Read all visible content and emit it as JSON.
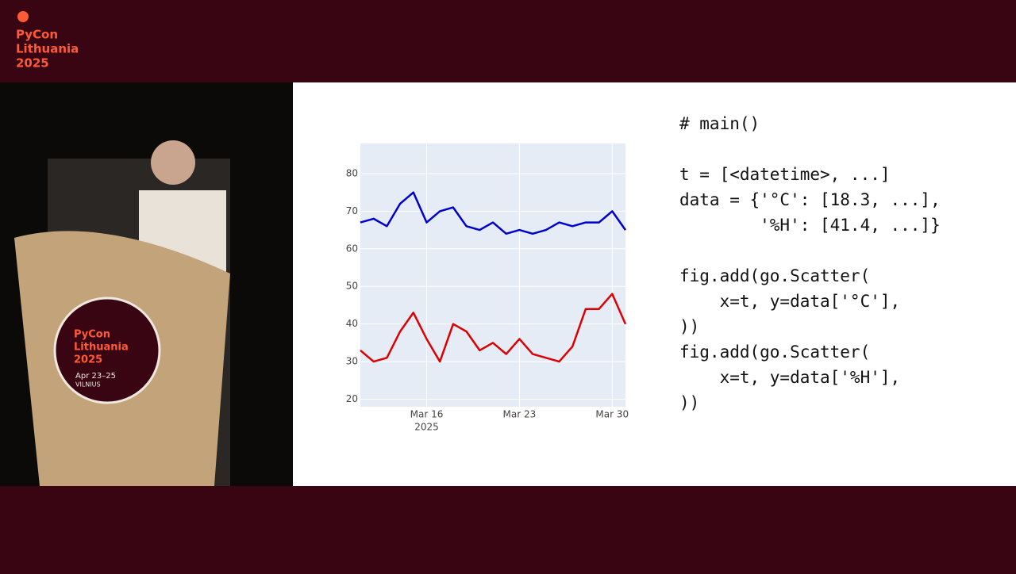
{
  "branding": {
    "lines": [
      "PyCon",
      "Lithuania",
      "2025"
    ]
  },
  "podium": {
    "lines": [
      "PyCon",
      "Lithuania",
      "2025"
    ],
    "dates": "Apr 23–25",
    "city": "VILNIUS"
  },
  "slide": {
    "code": [
      "# main()",
      "t = [<datetime>, ...]",
      "data = {'°C': [18.3, ...],",
      "        '%H': [41.4, ...]}",
      "fig.add(go.Scatter(",
      "    x=t, y=data['°C'],",
      "))",
      "fig.add(go.Scatter(",
      "    x=t, y=data['%H'],",
      "))"
    ]
  },
  "chart_data": {
    "type": "line",
    "x": [
      "2025-03-11",
      "2025-03-12",
      "2025-03-13",
      "2025-03-14",
      "2025-03-15",
      "2025-03-16",
      "2025-03-17",
      "2025-03-18",
      "2025-03-19",
      "2025-03-20",
      "2025-03-21",
      "2025-03-22",
      "2025-03-23",
      "2025-03-24",
      "2025-03-25",
      "2025-03-26",
      "2025-03-27",
      "2025-03-28",
      "2025-03-29",
      "2025-03-30",
      "2025-03-31"
    ],
    "series": [
      {
        "color": "#0000cc",
        "values": [
          67,
          68,
          66,
          72,
          75,
          67,
          70,
          71,
          66,
          65,
          67,
          64,
          65,
          64,
          65,
          67,
          66,
          67,
          67,
          70,
          65
        ]
      },
      {
        "color": "#dd0000",
        "values": [
          33,
          30,
          31,
          38,
          43,
          36,
          30,
          40,
          38,
          33,
          35,
          32,
          36,
          32,
          31,
          30,
          34,
          44,
          44,
          48,
          40
        ]
      }
    ],
    "xlim": [
      "2025-03-11",
      "2025-03-31"
    ],
    "xticks": [
      {
        "value": "2025-03-16",
        "label": "Mar 16"
      },
      {
        "value": "2025-03-23",
        "label": "Mar 23"
      },
      {
        "value": "2025-03-30",
        "label": "Mar 30"
      }
    ],
    "xtick_year": "2025",
    "ylim": [
      18,
      88
    ],
    "yticks": [
      20,
      30,
      40,
      50,
      60,
      70,
      80
    ],
    "grid": true,
    "background": "#e5ecf6"
  }
}
